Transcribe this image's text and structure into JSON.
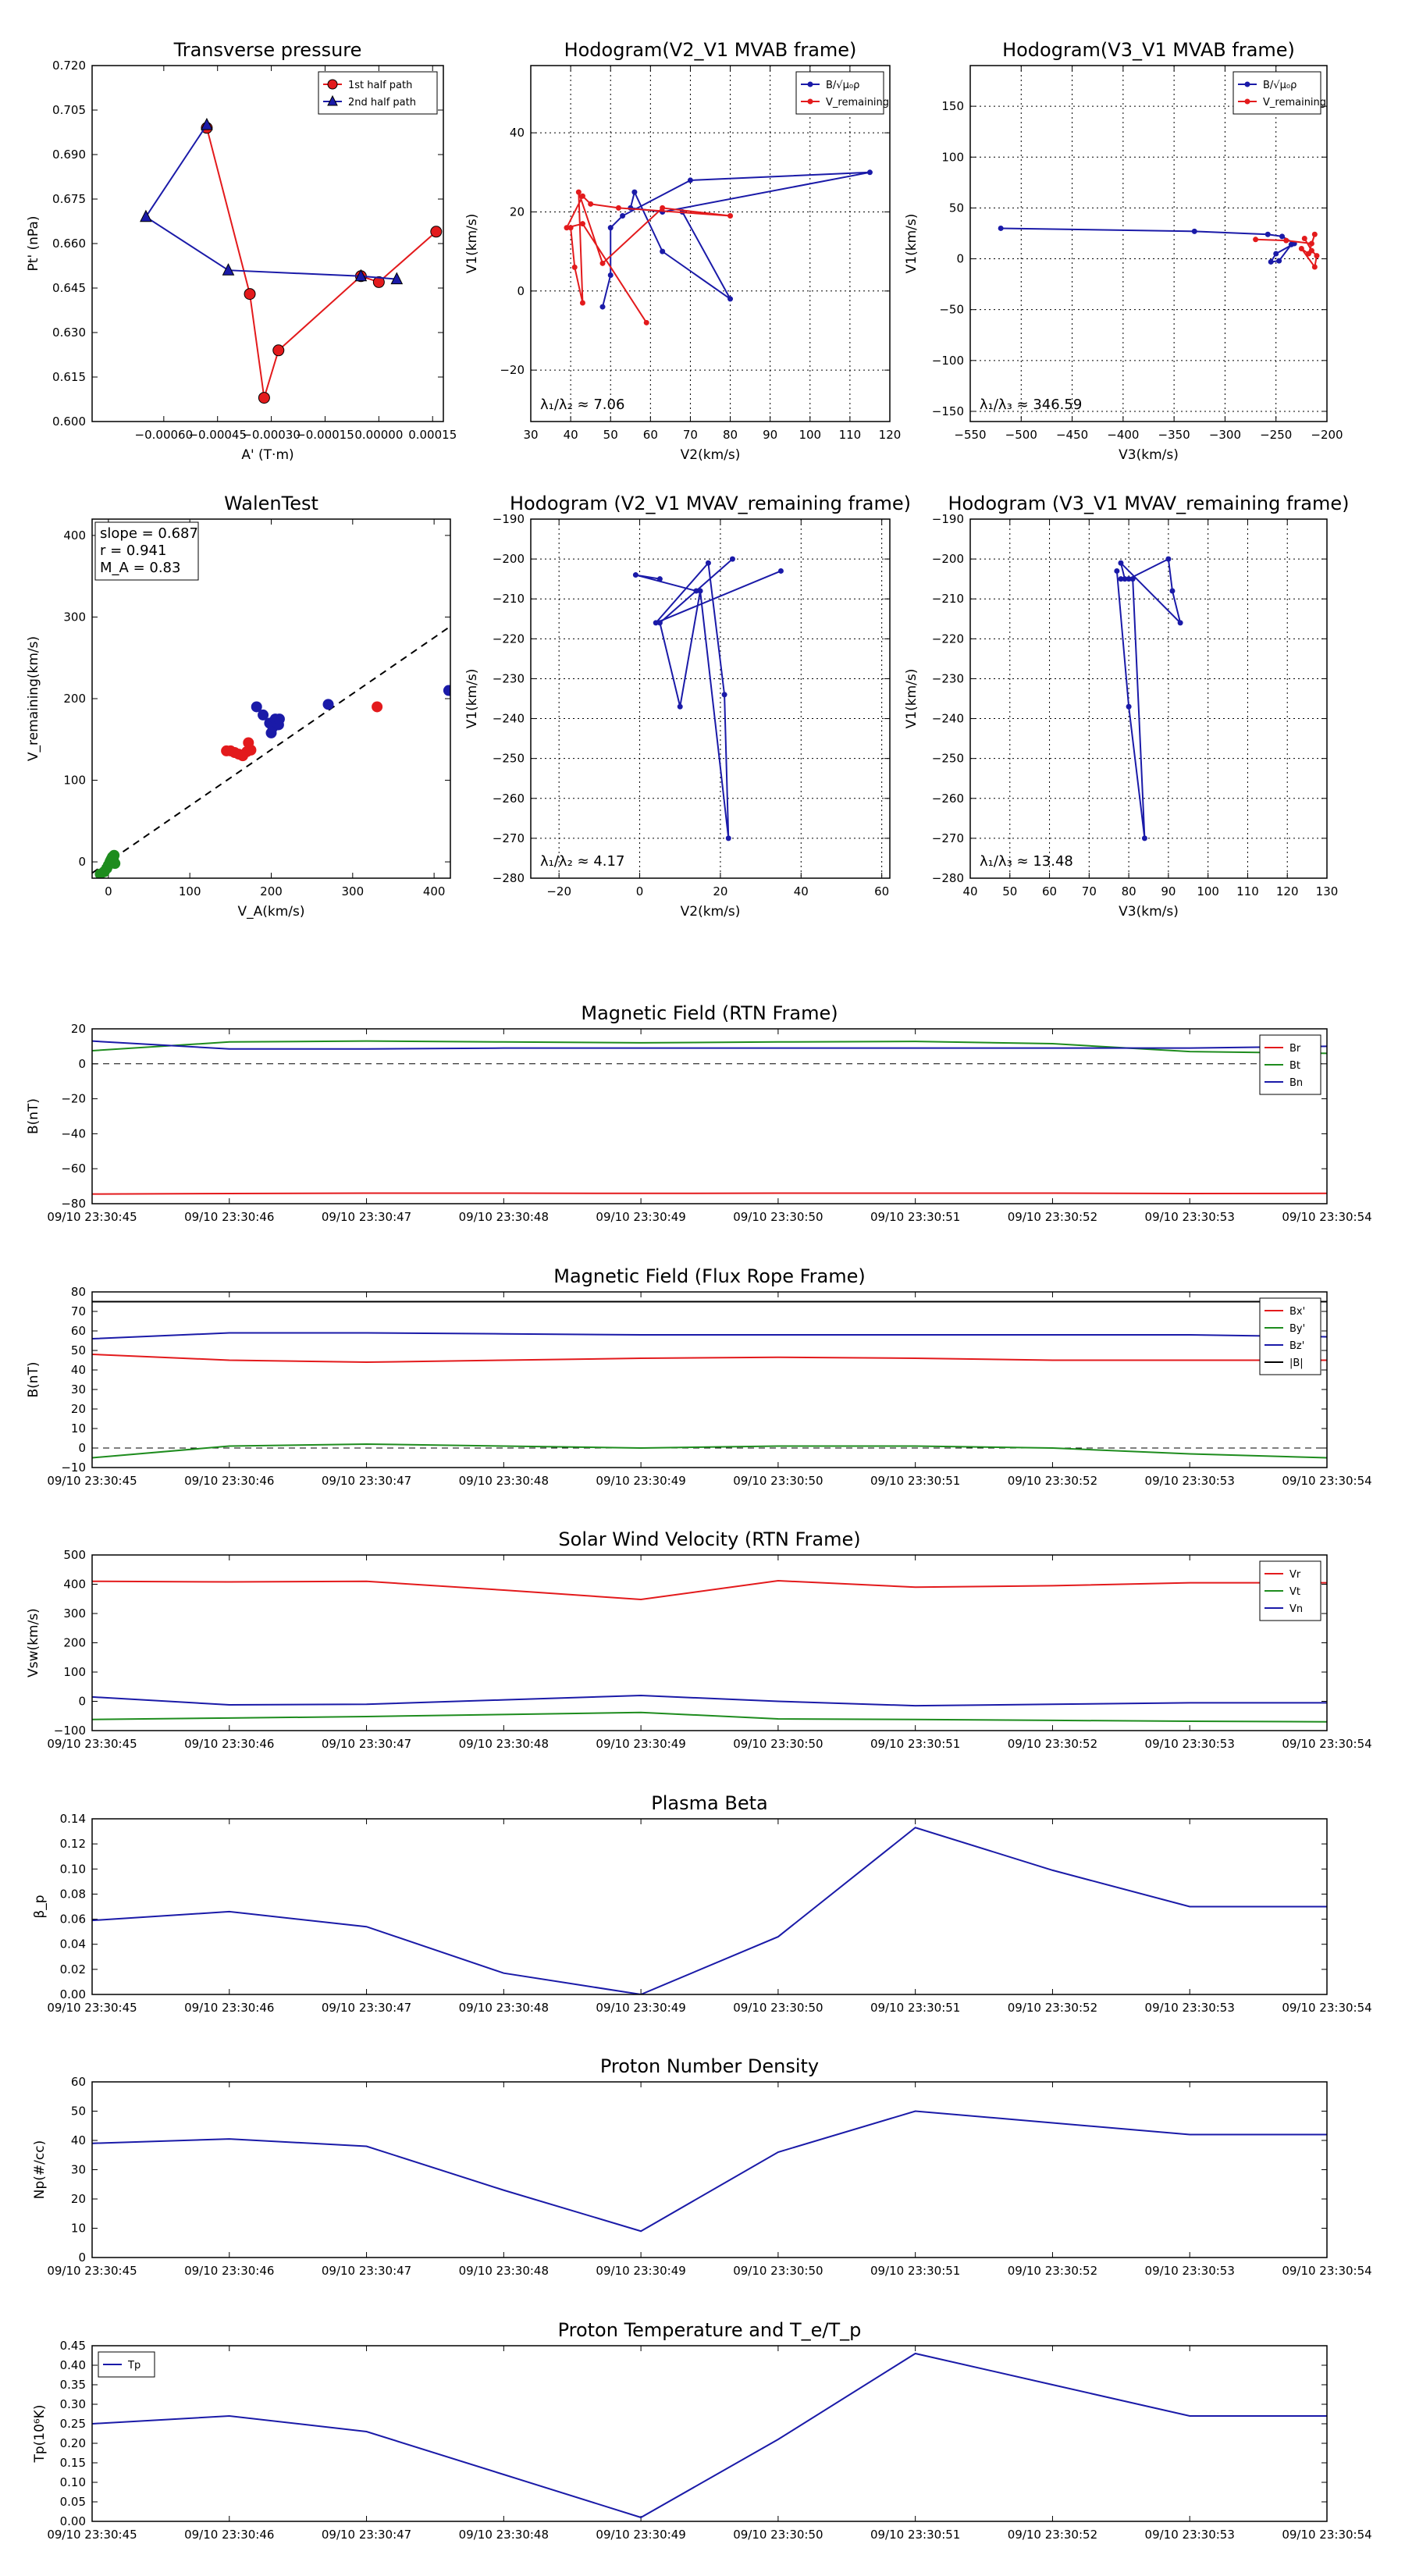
{
  "chart_data": [
    {
      "id": "p1",
      "type": "line",
      "title": "Transverse pressure",
      "xlabel": "A' (T·m)",
      "ylabel": "Pt' (nPa)",
      "xlim": [
        -0.0008,
        0.00018
      ],
      "ylim": [
        0.6,
        0.72
      ],
      "xticks": [
        -0.0006,
        -0.00045,
        -0.0003,
        -0.00015,
        0.0,
        0.00015
      ],
      "xtick_labels": [
        "−0.00060",
        "−0.00045",
        "−0.00030",
        "−0.00015",
        "0.00000",
        "0.00015"
      ],
      "yticks": [
        0.6,
        0.615,
        0.63,
        0.645,
        0.66,
        0.675,
        0.69,
        0.705,
        0.72
      ],
      "ytick_labels": [
        "0.600",
        "0.615",
        "0.630",
        "0.645",
        "0.660",
        "0.675",
        "0.690",
        "0.705",
        "0.720"
      ],
      "legend": "top-right",
      "series": [
        {
          "name": "1st half path",
          "color": "#e31a1c",
          "marker": "circle",
          "x": [
            -0.00048,
            -0.00036,
            -0.00032,
            -0.00028,
            -5e-05,
            0.0,
            0.00016
          ],
          "y": [
            0.699,
            0.643,
            0.608,
            0.624,
            0.649,
            0.647,
            0.664
          ]
        },
        {
          "name": "2nd half path",
          "color": "#1a1aa8",
          "marker": "triangle",
          "x": [
            -0.00048,
            -0.00065,
            -0.00042,
            -5e-05,
            5e-05
          ],
          "y": [
            0.7,
            0.669,
            0.651,
            0.649,
            0.648
          ]
        }
      ]
    },
    {
      "id": "p2",
      "type": "line",
      "title": "Hodogram(V2_V1 MVAB frame)",
      "xlabel": "V2(km/s)",
      "ylabel": "V1(km/s)",
      "xlim": [
        30,
        120
      ],
      "ylim": [
        -33,
        57
      ],
      "xticks": [
        30,
        40,
        50,
        60,
        70,
        80,
        90,
        100,
        110,
        120
      ],
      "xtick_labels": [
        "30",
        "40",
        "50",
        "60",
        "70",
        "80",
        "90",
        "100",
        "110",
        "120"
      ],
      "yticks": [
        -20,
        0,
        20,
        40
      ],
      "ytick_labels": [
        "−20",
        "0",
        "20",
        "40"
      ],
      "grid": true,
      "legend": "top-right",
      "annotation": "λ₁/λ₂ ≈ 7.06",
      "annotation_pos": "bottom-left",
      "series": [
        {
          "name": "B/√μ₀ρ",
          "color": "#1a1aa8",
          "x": [
            48,
            50,
            50,
            53,
            70,
            115,
            63,
            55,
            56,
            63,
            80,
            68
          ],
          "y": [
            -4,
            4,
            16,
            19,
            28,
            30,
            20,
            21,
            25,
            10,
            -2,
            20
          ]
        },
        {
          "name": "V_remaining",
          "color": "#e31a1c",
          "x": [
            40,
            41,
            43,
            42,
            48,
            63,
            80,
            52,
            45,
            43,
            39,
            43,
            59
          ],
          "y": [
            16,
            6,
            -3,
            25,
            7,
            21,
            19,
            21,
            22,
            24,
            16,
            17,
            -8
          ]
        }
      ]
    },
    {
      "id": "p3",
      "type": "line",
      "title": "Hodogram(V3_V1 MVAB frame)",
      "xlabel": "V3(km/s)",
      "ylabel": "V1(km/s)",
      "xlim": [
        -550,
        -200
      ],
      "ylim": [
        -160,
        190
      ],
      "xticks": [
        -550,
        -500,
        -450,
        -400,
        -350,
        -300,
        -250,
        -200
      ],
      "xtick_labels": [
        "−550",
        "−500",
        "−450",
        "−400",
        "−350",
        "−300",
        "−250",
        "−200"
      ],
      "yticks": [
        -150,
        -100,
        -50,
        0,
        50,
        100,
        150
      ],
      "ytick_labels": [
        "−150",
        "−100",
        "−50",
        "0",
        "50",
        "100",
        "150"
      ],
      "grid": true,
      "legend": "top-right",
      "annotation": "λ₁/λ₃ ≈ 346.59",
      "annotation_pos": "bottom-left",
      "series": [
        {
          "name": "B/√μ₀ρ",
          "color": "#1a1aa8",
          "x": [
            -520,
            -330,
            -258,
            -244,
            -232,
            -250,
            -255,
            -247,
            -235
          ],
          "y": [
            30,
            27,
            24,
            22,
            15,
            5,
            -3,
            -2,
            14
          ]
        },
        {
          "name": "V_remaining",
          "color": "#e31a1c",
          "x": [
            -270,
            -240,
            -215,
            -212,
            -218,
            -225,
            -212,
            -210,
            -215,
            -222
          ],
          "y": [
            19,
            18,
            15,
            24,
            5,
            10,
            -8,
            3,
            8,
            20
          ]
        }
      ]
    },
    {
      "id": "p4",
      "type": "scatter",
      "title": "WalenTest",
      "xlabel": "V_A(km/s)",
      "ylabel": "V_remaining(km/s)",
      "xlim": [
        -20,
        420
      ],
      "ylim": [
        -20,
        420
      ],
      "xticks": [
        0,
        100,
        200,
        300,
        400
      ],
      "xtick_labels": [
        "0",
        "100",
        "200",
        "300",
        "400"
      ],
      "yticks": [
        0,
        100,
        200,
        300,
        400
      ],
      "ytick_labels": [
        "0",
        "100",
        "200",
        "300",
        "400"
      ],
      "annotation_lines": [
        "slope = 0.687",
        "r = 0.941",
        "M_A = 0.83"
      ],
      "fit_line": {
        "slope": 0.687,
        "intercept": 0,
        "style": "dashed"
      },
      "series": [
        {
          "name": "red",
          "color": "#e31a1c",
          "x": [
            145,
            150,
            155,
            160,
            165,
            170,
            172,
            175,
            330
          ],
          "y": [
            136,
            136,
            134,
            132,
            130,
            135,
            146,
            137,
            190
          ]
        },
        {
          "name": "blue",
          "color": "#1a1aa8",
          "x": [
            182,
            190,
            198,
            200,
            202,
            205,
            207,
            209,
            210,
            270,
            418
          ],
          "y": [
            190,
            180,
            170,
            158,
            165,
            175,
            170,
            168,
            175,
            193,
            210
          ]
        },
        {
          "name": "green",
          "color": "#1e8c1e",
          "x": [
            -10,
            -5,
            -2,
            0,
            2,
            3,
            4,
            5,
            6,
            7,
            8
          ],
          "y": [
            -15,
            -12,
            -8,
            -4,
            0,
            2,
            4,
            6,
            3,
            8,
            -2
          ]
        }
      ]
    },
    {
      "id": "p5",
      "type": "line",
      "title": "Hodogram (V2_V1 MVAV_remaining frame)",
      "xlabel": "V2(km/s)",
      "ylabel": "V1(km/s)",
      "xlim": [
        -27,
        62
      ],
      "ylim": [
        -280,
        -190
      ],
      "xticks": [
        -20,
        0,
        20,
        40,
        60
      ],
      "xtick_labels": [
        "−20",
        "0",
        "20",
        "40",
        "60"
      ],
      "yticks": [
        -280,
        -270,
        -260,
        -250,
        -240,
        -230,
        -220,
        -210,
        -200,
        -190
      ],
      "ytick_labels": [
        "−280",
        "−270",
        "−260",
        "−250",
        "−240",
        "−230",
        "−220",
        "−210",
        "−200",
        "−190"
      ],
      "grid": true,
      "annotation": "λ₁/λ₂ ≈ 4.17",
      "annotation_pos": "bottom-left",
      "series": [
        {
          "name": "V",
          "color": "#1a1aa8",
          "x": [
            35,
            4,
            17,
            21,
            22,
            15,
            10,
            5,
            23,
            14,
            -1,
            5
          ],
          "y": [
            -203,
            -216,
            -201,
            -234,
            -270,
            -208,
            -237,
            -216,
            -200,
            -208,
            -204,
            -205
          ]
        }
      ]
    },
    {
      "id": "p6",
      "type": "line",
      "title": "Hodogram (V3_V1 MVAV_remaining frame)",
      "xlabel": "V3(km/s)",
      "ylabel": "V1(km/s)",
      "xlim": [
        40,
        130
      ],
      "ylim": [
        -280,
        -190
      ],
      "xticks": [
        40,
        50,
        60,
        70,
        80,
        90,
        100,
        110,
        120,
        130
      ],
      "xtick_labels": [
        "40",
        "50",
        "60",
        "70",
        "80",
        "90",
        "100",
        "110",
        "120",
        "130"
      ],
      "yticks": [
        -280,
        -270,
        -260,
        -250,
        -240,
        -230,
        -220,
        -210,
        -200,
        -190
      ],
      "ytick_labels": [
        "−280",
        "−270",
        "−260",
        "−250",
        "−240",
        "−230",
        "−220",
        "−210",
        "−200",
        "−190"
      ],
      "grid": true,
      "annotation": "λ₁/λ₃ ≈ 13.48",
      "annotation_pos": "bottom-left",
      "series": [
        {
          "name": "V",
          "color": "#1a1aa8",
          "x": [
            77,
            80,
            84,
            81,
            79,
            78,
            93,
            91,
            90,
            80,
            78
          ],
          "y": [
            -203,
            -237,
            -270,
            -205,
            -205,
            -201,
            -216,
            -208,
            -200,
            -205,
            -205
          ]
        }
      ]
    },
    {
      "id": "p7",
      "type": "line",
      "title": "Magnetic Field (RTN Frame)",
      "xlabel": "",
      "ylabel": "B(nT)",
      "xlim": [
        0,
        9
      ],
      "ylim": [
        -80,
        20
      ],
      "yticks": [
        -80,
        -60,
        -40,
        -20,
        0,
        20
      ],
      "ytick_labels": [
        "−80",
        "−60",
        "−40",
        "−20",
        "0",
        "20"
      ],
      "zero_line": true,
      "legend": "top-right",
      "x": [
        0,
        1,
        2,
        3,
        4,
        5,
        6,
        7,
        8,
        9
      ],
      "series": [
        {
          "name": "Br",
          "color": "#e31a1c",
          "values": [
            -74.5,
            -74.2,
            -74,
            -74,
            -74.1,
            -74,
            -74,
            -74,
            -74.2,
            -74.1
          ]
        },
        {
          "name": "Bt",
          "color": "#1e8c1e",
          "values": [
            7.5,
            12.5,
            13,
            12.5,
            12,
            12.5,
            12.8,
            11.5,
            7,
            6
          ]
        },
        {
          "name": "Bn",
          "color": "#1a1aa8",
          "values": [
            13,
            8.5,
            8.5,
            9,
            9,
            9,
            9,
            9,
            9,
            10
          ]
        }
      ]
    },
    {
      "id": "p8",
      "type": "line",
      "title": "Magnetic Field (Flux Rope Frame)",
      "xlabel": "",
      "ylabel": "B(nT)",
      "xlim": [
        0,
        9
      ],
      "ylim": [
        -10,
        80
      ],
      "yticks": [
        -10,
        0,
        10,
        20,
        30,
        40,
        50,
        60,
        70,
        80
      ],
      "ytick_labels": [
        "−10",
        "0",
        "10",
        "20",
        "30",
        "40",
        "50",
        "60",
        "70",
        "80"
      ],
      "zero_line": true,
      "legend": "top-right",
      "x": [
        0,
        1,
        2,
        3,
        4,
        5,
        6,
        7,
        8,
        9
      ],
      "series": [
        {
          "name": "Bx'",
          "color": "#e31a1c",
          "values": [
            48,
            45,
            44,
            45,
            46,
            46.5,
            46,
            45,
            45,
            45
          ]
        },
        {
          "name": "By'",
          "color": "#1e8c1e",
          "values": [
            -5,
            1,
            2,
            1,
            0,
            1,
            1,
            0,
            -3,
            -5
          ]
        },
        {
          "name": "Bz'",
          "color": "#1a1aa8",
          "values": [
            56,
            59,
            59,
            58.5,
            58,
            58,
            58,
            58,
            58,
            57
          ]
        },
        {
          "name": "|B|",
          "color": "#000000",
          "values": [
            75,
            75,
            75,
            75,
            75,
            75,
            75,
            75,
            75,
            75
          ]
        }
      ]
    },
    {
      "id": "p9",
      "type": "line",
      "title": "Solar Wind Velocity (RTN Frame)",
      "xlabel": "",
      "ylabel": "Vsw(km/s)",
      "xlim": [
        0,
        9
      ],
      "ylim": [
        -100,
        500
      ],
      "yticks": [
        -100,
        0,
        100,
        200,
        300,
        400,
        500
      ],
      "ytick_labels": [
        "−100",
        "0",
        "100",
        "200",
        "300",
        "400",
        "500"
      ],
      "legend": "top-right",
      "x": [
        0,
        1,
        2,
        3,
        4,
        5,
        6,
        7,
        8,
        9
      ],
      "series": [
        {
          "name": "Vr",
          "color": "#e31a1c",
          "values": [
            410,
            408,
            410,
            380,
            348,
            412,
            390,
            395,
            405,
            405
          ]
        },
        {
          "name": "Vt",
          "color": "#1e8c1e",
          "values": [
            -62,
            -57,
            -52,
            -45,
            -38,
            -60,
            -62,
            -65,
            -68,
            -70
          ]
        },
        {
          "name": "Vn",
          "color": "#1a1aa8",
          "values": [
            15,
            -12,
            -10,
            5,
            20,
            0,
            -15,
            -10,
            -5,
            -5
          ]
        }
      ]
    },
    {
      "id": "p10",
      "type": "line",
      "title": "Plasma Beta",
      "xlabel": "",
      "ylabel": "β_p",
      "xlim": [
        0,
        9
      ],
      "ylim": [
        0,
        0.14
      ],
      "yticks": [
        0,
        0.02,
        0.04,
        0.06,
        0.08,
        0.1,
        0.12,
        0.14
      ],
      "ytick_labels": [
        "0.00",
        "0.02",
        "0.04",
        "0.06",
        "0.08",
        "0.10",
        "0.12",
        "0.14"
      ],
      "x": [
        0,
        1,
        2,
        3,
        4,
        5,
        6,
        7,
        8,
        9
      ],
      "series": [
        {
          "name": "beta",
          "color": "#1a1aa8",
          "values": [
            0.059,
            0.066,
            0.054,
            0.017,
            0.0,
            0.046,
            0.133,
            0.099,
            0.07,
            0.07
          ]
        }
      ]
    },
    {
      "id": "p11",
      "type": "line",
      "title": "Proton Number Density",
      "xlabel": "",
      "ylabel": "Np(#/cc)",
      "xlim": [
        0,
        9
      ],
      "ylim": [
        0,
        60
      ],
      "yticks": [
        0,
        10,
        20,
        30,
        40,
        50,
        60
      ],
      "ytick_labels": [
        "0",
        "10",
        "20",
        "30",
        "40",
        "50",
        "60"
      ],
      "x": [
        0,
        1,
        2,
        3,
        4,
        5,
        6,
        7,
        8,
        9
      ],
      "series": [
        {
          "name": "Np",
          "color": "#1a1aa8",
          "values": [
            39,
            40.5,
            38,
            23,
            9,
            36,
            50,
            46,
            42,
            42
          ]
        }
      ]
    },
    {
      "id": "p12",
      "type": "line",
      "title": "Proton Temperature and T_e/T_p",
      "xlabel": "",
      "ylabel": "Tp(10⁶K)",
      "xlim": [
        0,
        9
      ],
      "ylim": [
        0,
        0.45
      ],
      "yticks": [
        0,
        0.05,
        0.1,
        0.15,
        0.2,
        0.25,
        0.3,
        0.35,
        0.4,
        0.45
      ],
      "ytick_labels": [
        "0.00",
        "0.05",
        "0.10",
        "0.15",
        "0.20",
        "0.25",
        "0.30",
        "0.35",
        "0.40",
        "0.45"
      ],
      "legend": "top-left",
      "x": [
        0,
        1,
        2,
        3,
        4,
        5,
        6,
        7,
        8,
        9
      ],
      "series": [
        {
          "name": "Tp",
          "color": "#1a1aa8",
          "values": [
            0.25,
            0.27,
            0.23,
            0.12,
            0.01,
            0.21,
            0.43,
            0.35,
            0.27,
            0.27
          ]
        }
      ]
    }
  ],
  "time_axis": {
    "ticks": [
      0,
      1,
      2,
      3,
      4,
      5,
      6,
      7,
      8,
      9
    ],
    "labels": [
      "09/10 23:30:45",
      "09/10 23:30:46",
      "09/10 23:30:47",
      "09/10 23:30:48",
      "09/10 23:30:49",
      "09/10 23:30:50",
      "09/10 23:30:51",
      "09/10 23:30:52",
      "09/10 23:30:53",
      "09/10 23:30:54"
    ]
  }
}
